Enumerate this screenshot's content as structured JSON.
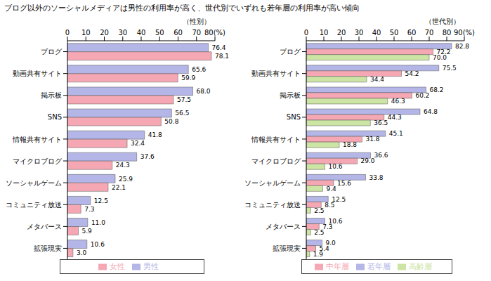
{
  "title": "ブログ以外のソーシャルメディアは男性の利用率が高く、世代別でいずれも若年層の利用率が高い傾向",
  "chart_data": [
    {
      "type": "bar",
      "orientation": "horizontal",
      "x_label": "（性別）",
      "categories": [
        "ブログ",
        "動画共有サイト",
        "掲示板",
        "SNS",
        "情報共有サイト",
        "マイクロブログ",
        "ソーシャルゲーム",
        "コミュニティ放送",
        "メタバース",
        "拡張現実"
      ],
      "series": [
        {
          "name": "男性",
          "color": "#b3b6e6",
          "values": [
            76.4,
            65.6,
            68.0,
            56.5,
            41.8,
            37.6,
            25.9,
            12.5,
            11.0,
            10.6
          ],
          "value_labels": [
            "76.4",
            "65.6",
            "68.0",
            "56.5",
            "41.8",
            "37.6",
            "25.9",
            "12.5",
            "11.0",
            "10.6"
          ]
        },
        {
          "name": "女性",
          "color": "#f5a8b4",
          "values": [
            78.1,
            59.9,
            57.5,
            50.8,
            32.4,
            24.3,
            22.1,
            7.3,
            5.9,
            3.0
          ],
          "value_labels": [
            "78.1",
            "59.9",
            "57.5",
            "50.8",
            "32.4",
            "24.3",
            "22.1",
            "7.3",
            "5.9",
            "3.0"
          ]
        }
      ],
      "xlim": [
        0,
        80
      ],
      "xticks": [
        0,
        10,
        20,
        30,
        40,
        50,
        60,
        70,
        {
          "value": 80,
          "label": "80(%)"
        }
      ],
      "grid": false,
      "legend": "bottom",
      "data_labels": true
    },
    {
      "type": "bar",
      "orientation": "horizontal",
      "x_label": "（世代別）",
      "categories": [
        "ブログ",
        "動画共有サイト",
        "掲示板",
        "SNS",
        "情報共有サイト",
        "マイクロブログ",
        "ソーシャルゲーム",
        "コミュニティ放送",
        "メタバース",
        "拡張現実"
      ],
      "series": [
        {
          "name": "若年層",
          "color": "#b3b6e6",
          "values": [
            82.8,
            75.5,
            68.2,
            64.8,
            45.1,
            36.6,
            33.8,
            12.5,
            10.6,
            9.0
          ],
          "value_labels": [
            "82.8",
            "75.5",
            "68.2",
            "64.8",
            "45.1",
            "36.6",
            "33.8",
            "12.5",
            "10.6",
            "9.0"
          ]
        },
        {
          "name": "中年層",
          "color": "#f5a8b4",
          "values": [
            72.2,
            54.2,
            60.2,
            44.3,
            31.8,
            29.0,
            15.6,
            8.5,
            7.3,
            5.4
          ],
          "value_labels": [
            "72.2",
            "54.2",
            "60.2",
            "44.3",
            "31.8",
            "29.0",
            "15.6",
            "8.5",
            "7.3",
            "5.4"
          ]
        },
        {
          "name": "高齢層",
          "color": "#cde5a4",
          "values": [
            70.0,
            34.4,
            46.3,
            36.5,
            18.8,
            10.6,
            9.4,
            2.5,
            2.5,
            1.9
          ],
          "value_labels": [
            "70.0",
            "34.4",
            "46.3",
            "36.5",
            "18.8",
            "10.6",
            "9.4",
            "2.5",
            "2.5",
            "1.9"
          ]
        }
      ],
      "xlim": [
        0,
        90
      ],
      "xticks": [
        0,
        10,
        20,
        30,
        40,
        50,
        60,
        70,
        80,
        {
          "value": 90,
          "label": "90(%)"
        }
      ],
      "grid": false,
      "legend": "bottom",
      "data_labels": true
    }
  ]
}
